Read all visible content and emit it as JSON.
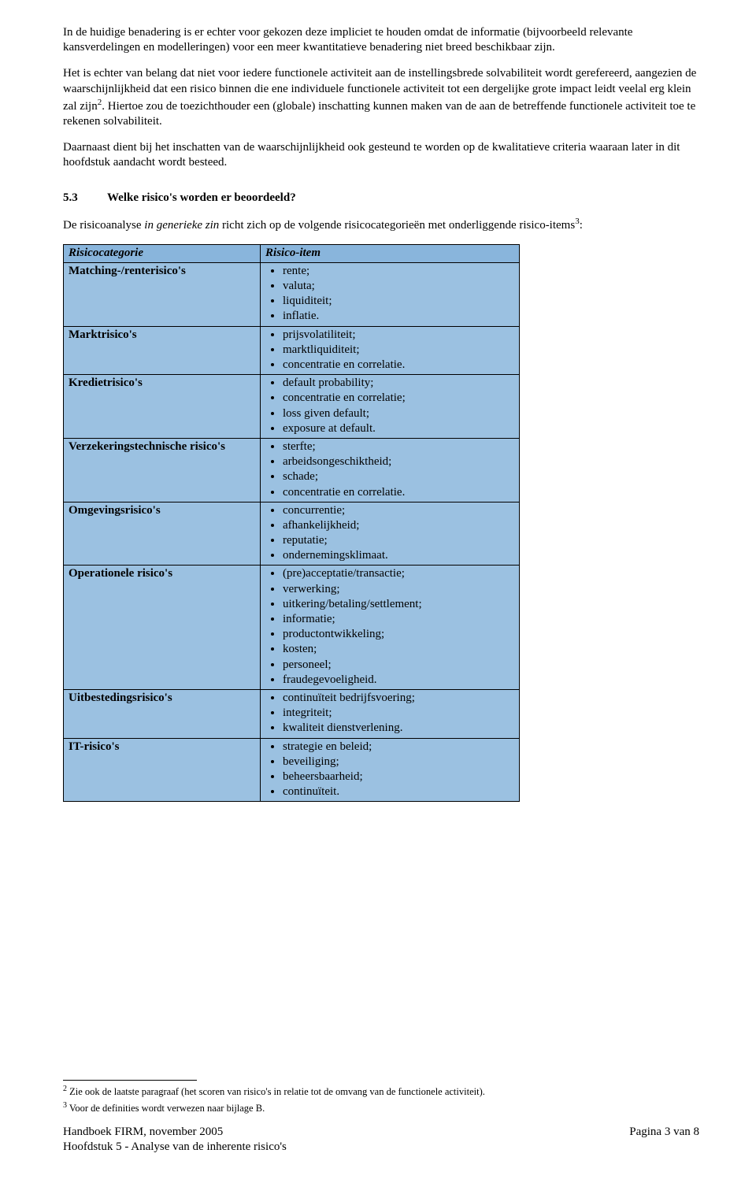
{
  "colors": {
    "page_bg": "#ffffff",
    "text": "#000000",
    "table_header_bg": "#89b5dc",
    "table_body_bg": "#9bc1e1",
    "table_border": "#000000"
  },
  "typography": {
    "body_family": "Times New Roman",
    "body_size_pt": 11,
    "heading_weight": "bold",
    "table_header_style": "bold-italic"
  },
  "paragraphs": {
    "p1": "In de huidige benadering is er echter voor gekozen deze impliciet te houden omdat de informatie (bijvoorbeeld relevante kansverdelingen en modelleringen) voor een meer kwantitatieve benadering niet breed beschikbaar zijn.",
    "p2_a": "Het is echter van belang dat niet voor iedere functionele activiteit aan de instellingsbrede solvabiliteit wordt gerefereerd, aangezien de waarschijnlijkheid dat een risico binnen die ene individuele functionele activiteit tot een dergelijke grote impact leidt veelal erg klein zal zijn",
    "p2_sup": "2",
    "p2_b": ". Hiertoe zou de toezichthouder een (globale) inschatting kunnen maken van de aan de betreffende functionele activiteit toe te rekenen solvabiliteit.",
    "p3": "Daarnaast dient bij het inschatten van de waarschijnlijkheid ook gesteund te worden op de kwalitatieve criteria waaraan later in dit hoofdstuk aandacht wordt besteed."
  },
  "section": {
    "number": "5.3",
    "title": "Welke risico's worden er beoordeeld?",
    "intro_a": "De risicoanalyse ",
    "intro_i": "in generieke zin",
    "intro_b": " richt zich op de volgende risicocategorieën met onderliggende risico-items",
    "intro_sup": "3",
    "intro_c": ":"
  },
  "table": {
    "header": {
      "col1": "Risicocategorie",
      "col2": "Risico-item"
    },
    "rows": [
      {
        "category": "Matching-/renterisico's",
        "items": [
          "rente;",
          "valuta;",
          "liquiditeit;",
          "inflatie."
        ]
      },
      {
        "category": "Marktrisico's",
        "items": [
          "prijsvolatiliteit;",
          "marktliquiditeit;",
          "concentratie en correlatie."
        ]
      },
      {
        "category": "Kredietrisico's",
        "items": [
          "default probability;",
          "concentratie en correlatie;",
          "loss given default;",
          "exposure at default."
        ]
      },
      {
        "category": "Verzekeringstechnische risico's",
        "items": [
          "sterfte;",
          "arbeidsongeschiktheid;",
          "schade;",
          "concentratie en correlatie."
        ]
      },
      {
        "category": "Omgevingsrisico's",
        "items": [
          "concurrentie;",
          "afhankelijkheid;",
          "reputatie;",
          "ondernemingsklimaat."
        ]
      },
      {
        "category": "Operationele risico's",
        "items": [
          "(pre)acceptatie/transactie;",
          "verwerking;",
          "uitkering/betaling/settlement;",
          "informatie;",
          "productontwikkeling;",
          "kosten;",
          "personeel;",
          "fraudegevoeligheid."
        ]
      },
      {
        "category": "Uitbestedingsrisico's",
        "items": [
          "continuïteit bedrijfsvoering;",
          "integriteit;",
          "kwaliteit dienstverlening."
        ]
      },
      {
        "category": "IT-risico's",
        "items": [
          "strategie en beleid;",
          "beveiliging;",
          "beheersbaarheid;",
          "continuïteit."
        ]
      }
    ]
  },
  "footnotes": {
    "fn2_num": "2",
    "fn2_text": " Zie ook de laatste paragraaf (het scoren van risico's in relatie tot de omvang van de functionele activiteit).",
    "fn3_num": "3",
    "fn3_text": " Voor de definities wordt verwezen naar bijlage B."
  },
  "footer": {
    "line1": "Handboek FIRM, november 2005",
    "line2": "Hoofdstuk 5 - Analyse van de inherente risico's",
    "page": "Pagina 3 van 8"
  }
}
